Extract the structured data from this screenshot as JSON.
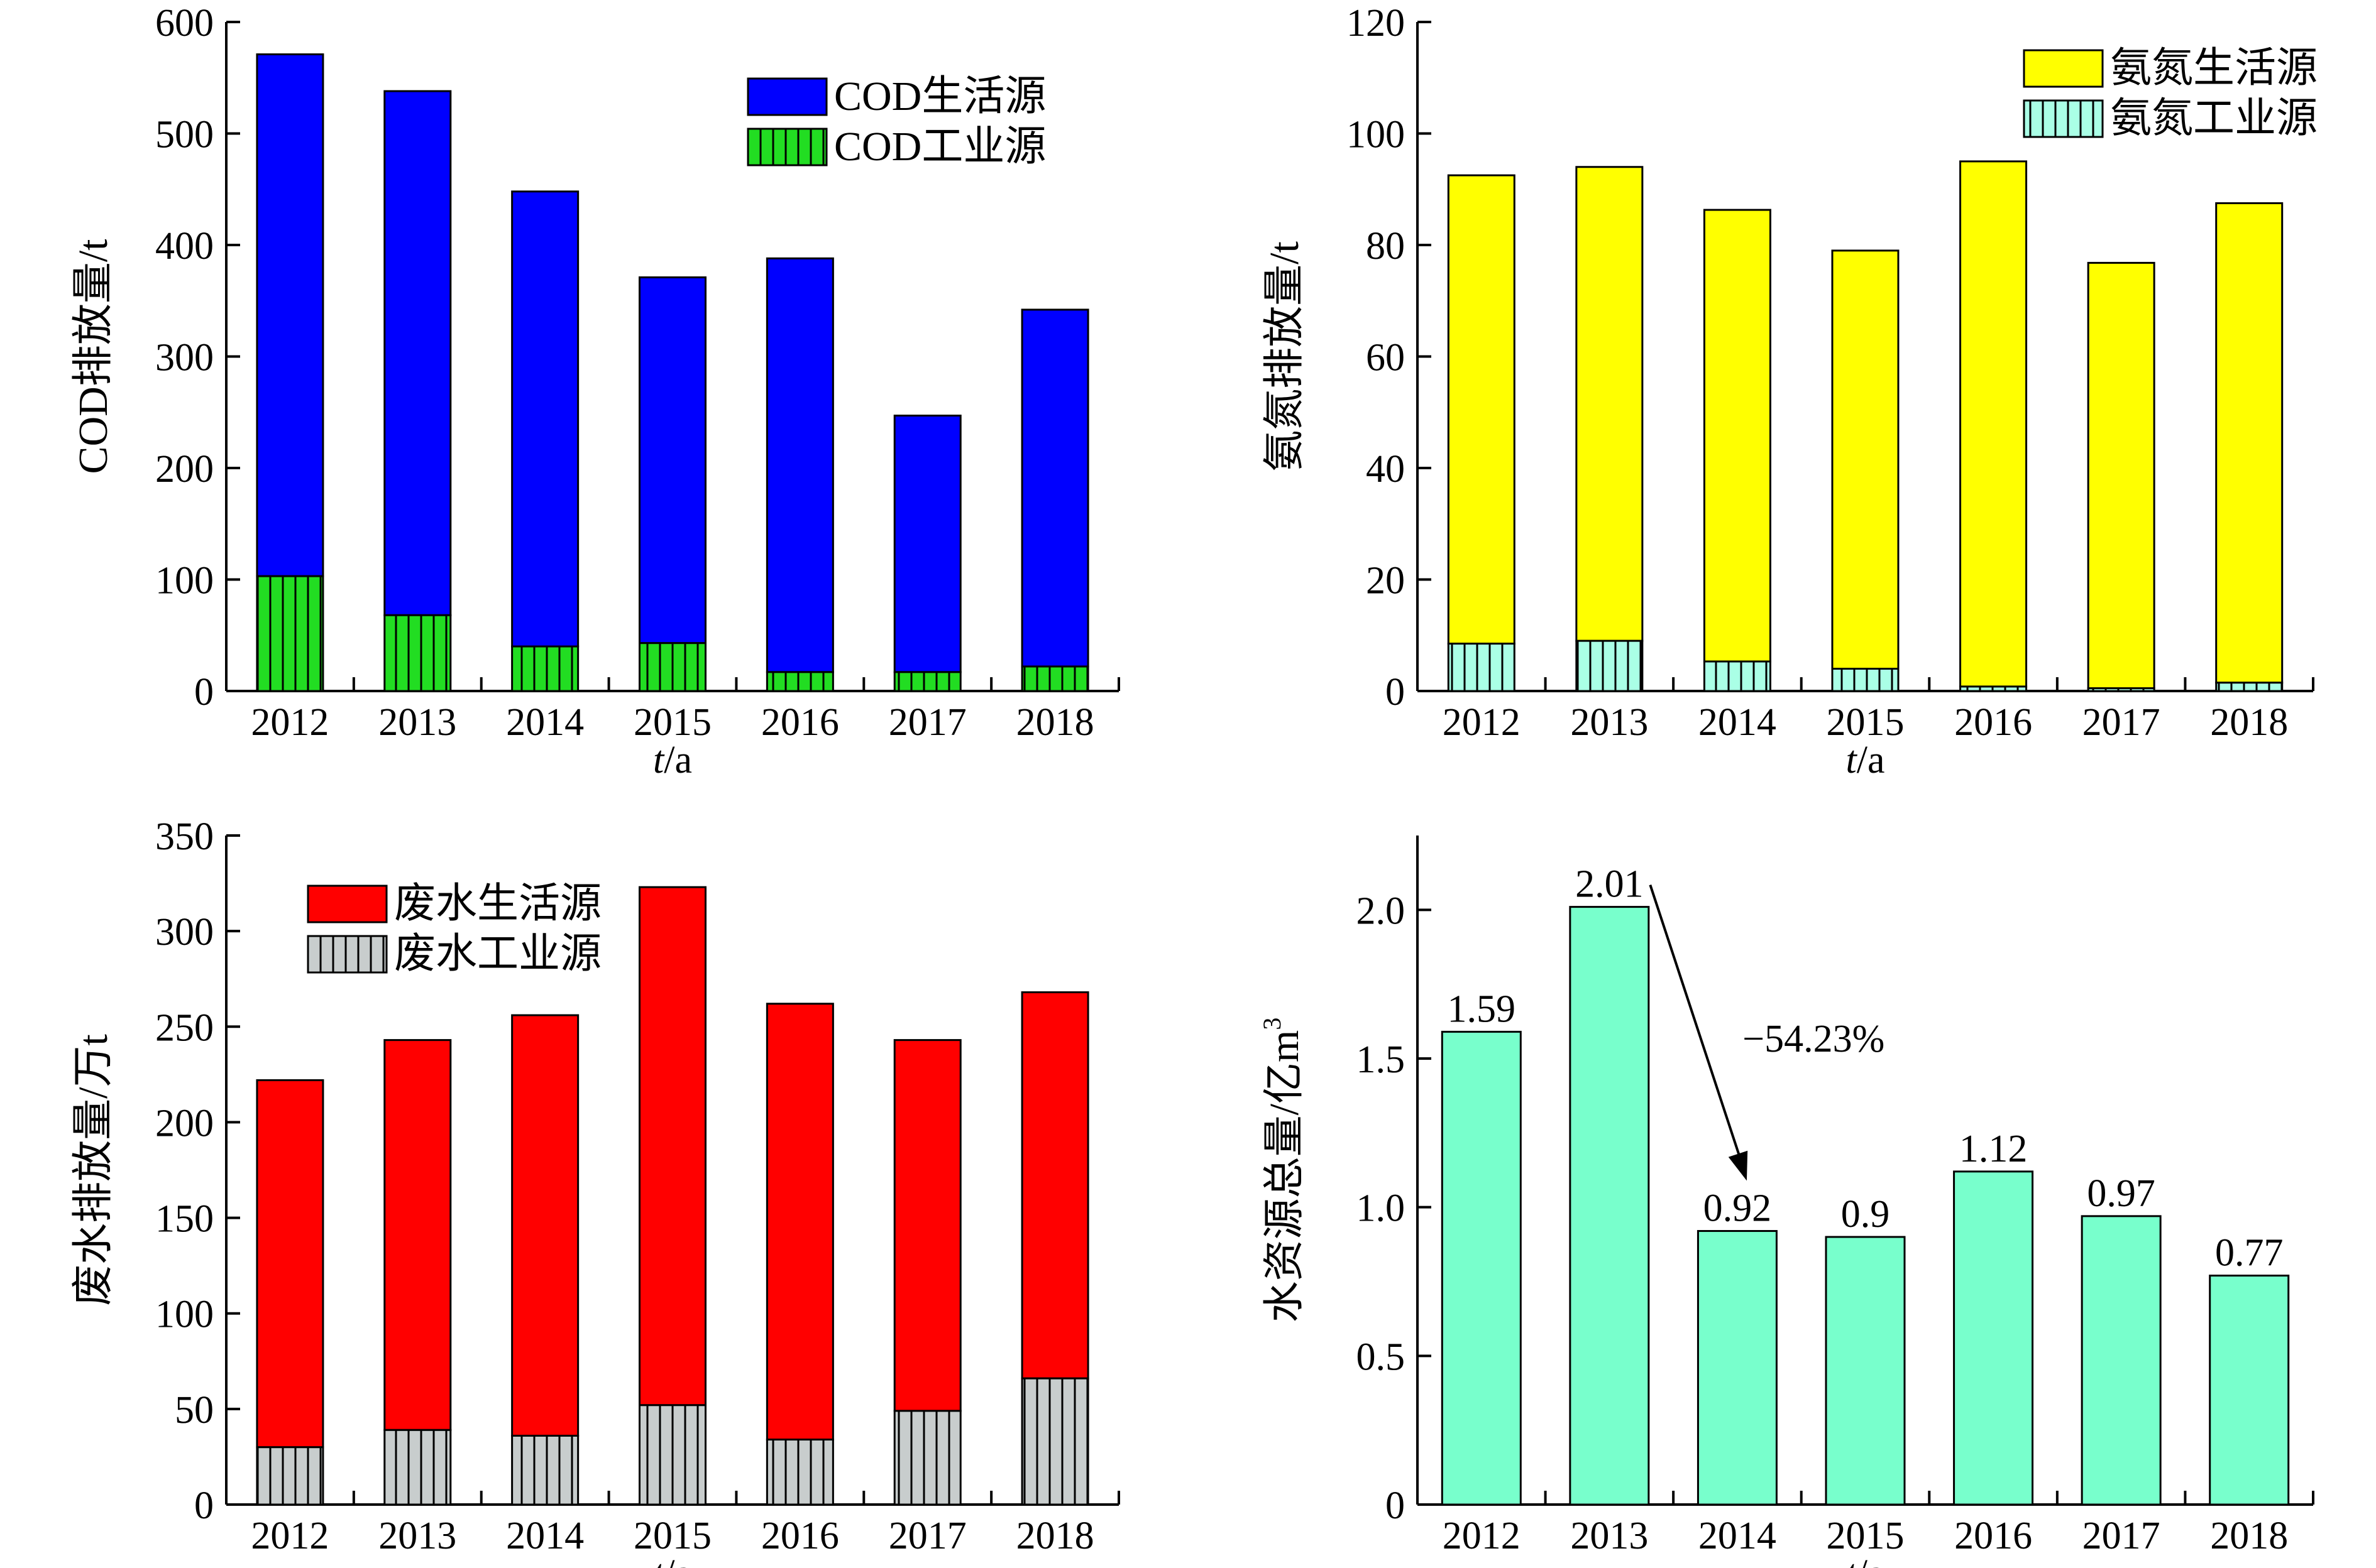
{
  "chart_data": [
    {
      "type": "bar",
      "stacked": true,
      "panel": "top-left",
      "categories": [
        "2012",
        "2013",
        "2014",
        "2015",
        "2016",
        "2017",
        "2018"
      ],
      "series": [
        {
          "name": "COD生活源",
          "values": [
            468,
            470,
            408,
            328,
            371,
            230,
            320
          ],
          "color": "#0000FF",
          "pattern": "solid"
        },
        {
          "name": "COD工业源",
          "values": [
            103,
            68,
            40,
            43,
            17,
            17,
            22
          ],
          "color": "#22DD22",
          "pattern": "vertical-stripes"
        }
      ],
      "ylabel": "COD排放量/t",
      "xlabel_italic": "t",
      "xlabel_rest": "/a",
      "ylim": [
        0,
        600
      ],
      "yticks": [
        "0",
        "100",
        "200",
        "300",
        "400",
        "500",
        "600"
      ],
      "legend_position": "top-right",
      "grid": false
    },
    {
      "type": "bar",
      "stacked": true,
      "panel": "top-right",
      "categories": [
        "2012",
        "2013",
        "2014",
        "2015",
        "2016",
        "2017",
        "2018"
      ],
      "series": [
        {
          "name": "氨氮生活源",
          "values": [
            84,
            85,
            81,
            75,
            94.2,
            76.3,
            86
          ],
          "color": "#FFFF00",
          "pattern": "solid"
        },
        {
          "name": "氨氮工业源",
          "values": [
            8.5,
            9,
            5.3,
            4,
            0.8,
            0.5,
            1.5
          ],
          "color": "#AAFFE6",
          "pattern": "vertical-stripes"
        }
      ],
      "ylabel": "氨氮排放量/t",
      "xlabel_italic": "t",
      "xlabel_rest": "/a",
      "ylim": [
        0,
        120
      ],
      "yticks": [
        "0",
        "20",
        "40",
        "60",
        "80",
        "100",
        "120"
      ],
      "legend_position": "top-right",
      "grid": false
    },
    {
      "type": "bar",
      "stacked": true,
      "panel": "bottom-left",
      "categories": [
        "2012",
        "2013",
        "2014",
        "2015",
        "2016",
        "2017",
        "2018"
      ],
      "series": [
        {
          "name": "废水生活源",
          "values": [
            192,
            204,
            220,
            271,
            228,
            194,
            202
          ],
          "color": "#FF0000",
          "pattern": "solid"
        },
        {
          "name": "废水工业源",
          "values": [
            30,
            39,
            36,
            52,
            34,
            49,
            66
          ],
          "color": "#C8CDCD",
          "pattern": "vertical-stripes"
        }
      ],
      "ylabel": "废水排放量/万t",
      "xlabel_italic": "t",
      "xlabel_rest": "/a",
      "ylim": [
        0,
        350
      ],
      "yticks": [
        "0",
        "50",
        "100",
        "150",
        "200",
        "250",
        "300",
        "350"
      ],
      "legend_position": "top-left",
      "grid": false
    },
    {
      "type": "bar",
      "stacked": false,
      "panel": "bottom-right",
      "categories": [
        "2012",
        "2013",
        "2014",
        "2015",
        "2016",
        "2017",
        "2018"
      ],
      "values": [
        1.59,
        2.01,
        0.92,
        0.9,
        1.12,
        0.97,
        0.77
      ],
      "data_labels": [
        "1.59",
        "2.01",
        "0.92",
        "0.9",
        "1.12",
        "0.97",
        "0.77"
      ],
      "color": "#78FFCC",
      "ylabel_main": "水资源总量/亿m",
      "ylabel_sup": "3",
      "xlabel_italic": "t",
      "xlabel_rest": "/a",
      "ylim": [
        0,
        2.25
      ],
      "yticks": [
        "0",
        "0.5",
        "1.0",
        "1.5",
        "2.0"
      ],
      "annotation": {
        "text": "−54.23%",
        "from": "2013",
        "to": "2014"
      },
      "grid": false
    }
  ]
}
